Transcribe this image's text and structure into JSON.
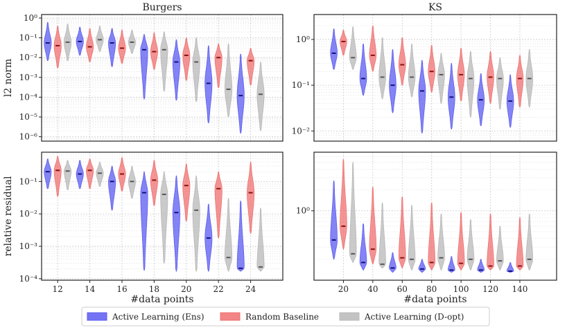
{
  "colors": {
    "ens": "#5b5bf2",
    "random": "#f07070",
    "dopt": "#b8b8b8",
    "frame": "#222222",
    "grid": "#cfcfcf"
  },
  "legend": {
    "placement": "bottom-center",
    "items": [
      {
        "label": "Active Learning (Ens)",
        "color": "#5b5bf2"
      },
      {
        "label": "Random Baseline",
        "color": "#f07070"
      },
      {
        "label": "Active Learning (D-opt)",
        "color": "#b8b8b8"
      }
    ]
  },
  "chart_data": [
    {
      "type": "violin",
      "id": "burgers-l2",
      "title": "Burgers",
      "xlabel": "",
      "ylabel": "l2 norm",
      "yscale": "log",
      "ylim": [
        6e-07,
        1.5
      ],
      "yticks": [
        1e-06,
        1e-05,
        0.0001,
        0.001,
        0.01,
        0.1,
        1
      ],
      "yticklabels": [
        "10⁻⁶",
        "10⁻⁵",
        "10⁻⁴",
        "10⁻³",
        "10⁻²",
        "10⁻¹",
        "10⁰"
      ],
      "xlim": [
        11,
        26
      ],
      "xticks": [],
      "grid": true,
      "groups": [
        {
          "x": 12,
          "ens": [
            0.007,
            0.055,
            0.6
          ],
          "random": [
            0.003,
            0.04,
            0.4
          ],
          "dopt": [
            0.007,
            0.06,
            0.5
          ]
        },
        {
          "x": 14,
          "ens": [
            0.013,
            0.065,
            0.35
          ],
          "random": [
            0.006,
            0.035,
            0.3
          ],
          "dopt": [
            0.02,
            0.08,
            0.4
          ]
        },
        {
          "x": 16,
          "ens": [
            0.0035,
            0.055,
            0.3
          ],
          "random": [
            0.005,
            0.03,
            0.25
          ],
          "dopt": [
            0.016,
            0.06,
            0.25
          ]
        },
        {
          "x": 18,
          "ens": [
            8e-05,
            0.025,
            0.15
          ],
          "random": [
            0.0025,
            0.02,
            0.18
          ],
          "dopt": [
            0.0002,
            0.025,
            0.2
          ]
        },
        {
          "x": 20,
          "ens": [
            7e-05,
            0.006,
            0.08
          ],
          "random": [
            0.0007,
            0.013,
            0.1
          ],
          "dopt": [
            6e-05,
            0.006,
            0.1
          ]
        },
        {
          "x": 22,
          "ens": [
            5e-06,
            0.0005,
            0.04
          ],
          "random": [
            0.0003,
            0.01,
            0.05
          ],
          "dopt": [
            1e-05,
            0.00025,
            0.05
          ]
        },
        {
          "x": 24,
          "ens": [
            1.5e-06,
            0.00012,
            0.015
          ],
          "random": [
            0.0004,
            0.007,
            0.03
          ],
          "dopt": [
            2e-06,
            0.00014,
            0.006
          ]
        }
      ]
    },
    {
      "type": "violin",
      "id": "ks-l2",
      "title": "KS",
      "xlabel": "",
      "ylabel": "",
      "yscale": "log",
      "ylim": [
        0.006,
        3.5
      ],
      "yticks": [
        0.01,
        0.1,
        1
      ],
      "yticklabels": [
        "10⁻²",
        "10⁻¹",
        "10⁰"
      ],
      "xlim": [
        0,
        165
      ],
      "xticks": [],
      "grid": true,
      "groups": [
        {
          "x": 20,
          "ens": [
            0.22,
            0.5,
            1.7
          ],
          "random": [
            0.45,
            0.9,
            1.6
          ],
          "dopt": [
            0.22,
            0.4,
            1.9
          ]
        },
        {
          "x": 40,
          "ens": [
            0.06,
            0.14,
            0.8
          ],
          "random": [
            0.2,
            0.45,
            2.0
          ],
          "dopt": [
            0.05,
            0.15,
            1.1
          ]
        },
        {
          "x": 60,
          "ens": [
            0.025,
            0.1,
            0.6
          ],
          "random": [
            0.1,
            0.28,
            1.1
          ],
          "dopt": [
            0.055,
            0.15,
            0.8
          ]
        },
        {
          "x": 80,
          "ens": [
            0.009,
            0.075,
            0.35
          ],
          "random": [
            0.07,
            0.2,
            0.75
          ],
          "dopt": [
            0.04,
            0.17,
            0.5
          ]
        },
        {
          "x": 100,
          "ens": [
            0.011,
            0.055,
            0.3
          ],
          "random": [
            0.045,
            0.17,
            0.65
          ],
          "dopt": [
            0.02,
            0.14,
            0.55
          ]
        },
        {
          "x": 120,
          "ens": [
            0.013,
            0.048,
            0.18
          ],
          "random": [
            0.04,
            0.15,
            0.55
          ],
          "dopt": [
            0.03,
            0.14,
            0.4
          ]
        },
        {
          "x": 140,
          "ens": [
            0.012,
            0.045,
            0.17
          ],
          "random": [
            0.033,
            0.14,
            0.45
          ],
          "dopt": [
            0.033,
            0.14,
            0.6
          ]
        }
      ]
    },
    {
      "type": "violin",
      "id": "burgers-residual",
      "title": "",
      "xlabel": "#data points",
      "ylabel": "relative residual",
      "yscale": "log",
      "ylim": [
        9e-05,
        0.8
      ],
      "yticks": [
        0.0001,
        0.001,
        0.01,
        0.1
      ],
      "yticklabels": [
        "10⁻⁴",
        "10⁻³",
        "10⁻²",
        "10⁻¹"
      ],
      "xlim": [
        11,
        26
      ],
      "xticks": [
        12,
        14,
        16,
        18,
        20,
        22,
        24
      ],
      "grid": true,
      "groups": [
        {
          "x": 12,
          "ens": [
            0.06,
            0.2,
            0.5
          ],
          "random": [
            0.035,
            0.22,
            0.6
          ],
          "dopt": [
            0.055,
            0.21,
            0.45
          ]
        },
        {
          "x": 14,
          "ens": [
            0.06,
            0.17,
            0.45
          ],
          "random": [
            0.06,
            0.22,
            0.5
          ],
          "dopt": [
            0.07,
            0.18,
            0.4
          ]
        },
        {
          "x": 16,
          "ens": [
            0.013,
            0.1,
            0.3
          ],
          "random": [
            0.05,
            0.17,
            0.55
          ],
          "dopt": [
            0.03,
            0.1,
            0.3
          ]
        },
        {
          "x": 18,
          "ens": [
            0.00018,
            0.045,
            0.2
          ],
          "random": [
            0.018,
            0.11,
            0.45
          ],
          "dopt": [
            0.0003,
            0.04,
            0.2
          ]
        },
        {
          "x": 20,
          "ens": [
            0.00017,
            0.011,
            0.15
          ],
          "random": [
            0.006,
            0.075,
            0.35
          ],
          "dopt": [
            0.00017,
            0.013,
            0.15
          ]
        },
        {
          "x": 22,
          "ens": [
            0.00017,
            0.0018,
            0.02
          ],
          "random": [
            0.0018,
            0.06,
            0.2
          ],
          "dopt": [
            0.00017,
            0.00045,
            0.03
          ]
        },
        {
          "x": 24,
          "ens": [
            0.00017,
            0.00021,
            0.025
          ],
          "random": [
            0.0025,
            0.045,
            0.4
          ],
          "dopt": [
            0.00017,
            0.00023,
            0.015
          ]
        }
      ]
    },
    {
      "type": "violin",
      "id": "ks-residual",
      "title": "",
      "xlabel": "#data points",
      "ylabel": "",
      "yscale": "log",
      "ylim": [
        0.1,
        7.0
      ],
      "yticks": [
        1
      ],
      "yticklabels": [
        "10⁰"
      ],
      "xlim": [
        0,
        165
      ],
      "xticks": [
        20,
        40,
        60,
        80,
        100,
        120,
        140
      ],
      "grid": true,
      "groups": [
        {
          "x": 20,
          "ens": [
            0.2,
            0.38,
            2.7
          ],
          "random": [
            0.28,
            0.6,
            5.5
          ],
          "dopt": [
            0.18,
            0.24,
            5.0
          ]
        },
        {
          "x": 40,
          "ens": [
            0.14,
            0.18,
            0.65
          ],
          "random": [
            0.17,
            0.28,
            2.2
          ],
          "dopt": [
            0.15,
            0.17,
            1.3
          ]
        },
        {
          "x": 60,
          "ens": [
            0.13,
            0.15,
            0.25
          ],
          "random": [
            0.15,
            0.21,
            1.6
          ],
          "dopt": [
            0.14,
            0.2,
            1.2
          ]
        },
        {
          "x": 80,
          "ens": [
            0.13,
            0.145,
            0.2
          ],
          "random": [
            0.14,
            0.18,
            1.3
          ],
          "dopt": [
            0.14,
            0.21,
            0.9
          ]
        },
        {
          "x": 100,
          "ens": [
            0.13,
            0.14,
            0.22
          ],
          "random": [
            0.14,
            0.175,
            0.95
          ],
          "dopt": [
            0.14,
            0.2,
            0.75
          ]
        },
        {
          "x": 120,
          "ens": [
            0.13,
            0.14,
            0.2
          ],
          "random": [
            0.14,
            0.16,
            0.9
          ],
          "dopt": [
            0.14,
            0.19,
            0.6
          ]
        },
        {
          "x": 140,
          "ens": [
            0.13,
            0.135,
            0.18
          ],
          "random": [
            0.14,
            0.16,
            0.8
          ],
          "dopt": [
            0.14,
            0.2,
            0.9
          ]
        }
      ]
    }
  ]
}
